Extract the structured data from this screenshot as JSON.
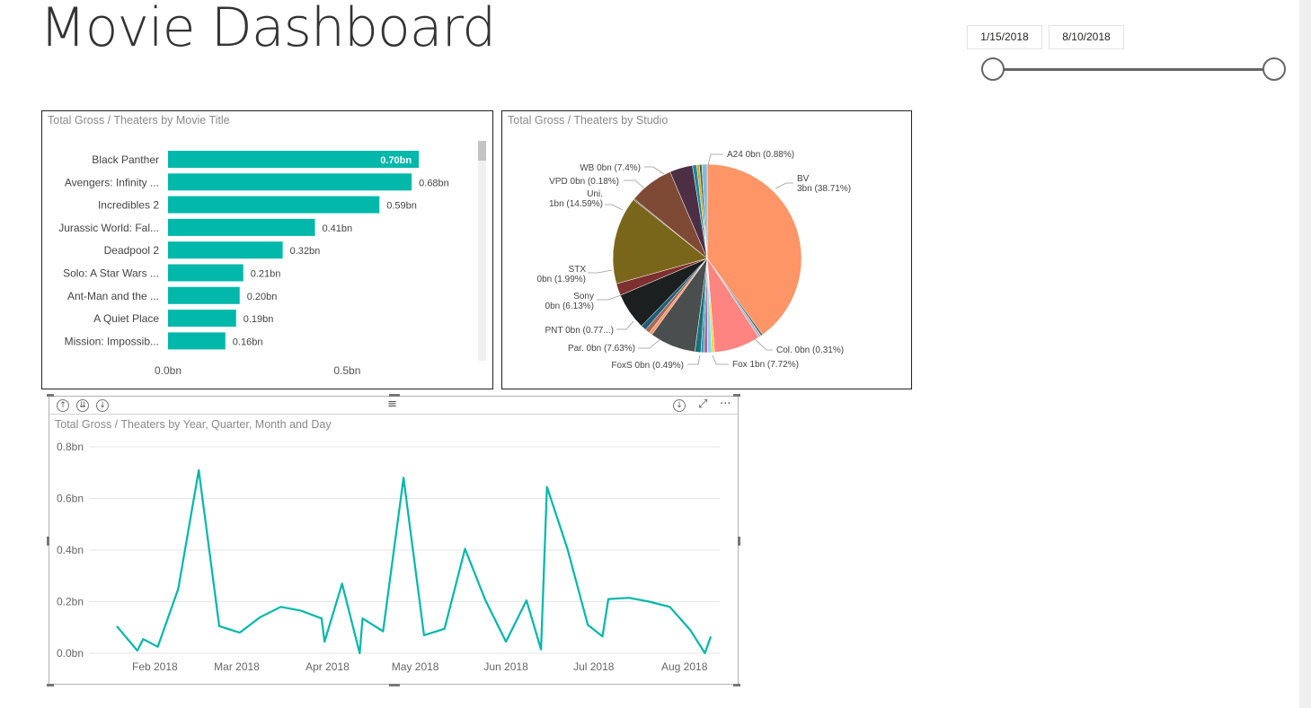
{
  "page": {
    "title": "Movie Dashboard"
  },
  "date_filter": {
    "start_label": "1/15/2018",
    "end_label": "8/10/2018",
    "range_fraction": [
      0.0,
      1.0
    ]
  },
  "bar_panel": {
    "title": "Total Gross / Theaters by Movie Title"
  },
  "pie_panel": {
    "title": "Total Gross / Theaters by Studio"
  },
  "line_panel": {
    "title": "Total Gross / Theaters by Year, Quarter, Month and Day",
    "header_icons": [
      "drill-up-icon",
      "expand-level-icon",
      "drill-down-mode-icon",
      "drag-handle-icon",
      "download-icon",
      "focus-mode-icon",
      "more-options-icon"
    ]
  },
  "colors": {
    "teal": "#01b8aa",
    "border": "#222222"
  },
  "chart_data": [
    {
      "type": "bar",
      "orientation": "horizontal",
      "title": "Total Gross / Theaters by Movie Title",
      "categories": [
        "Black Panther",
        "Avengers: Infinity ...",
        "Incredibles 2",
        "Jurassic World: Fal...",
        "Deadpool 2",
        "Solo: A Star Wars ...",
        "Ant-Man and the ...",
        "A Quiet Place",
        "Mission: Impossib..."
      ],
      "values": [
        0.7,
        0.68,
        0.59,
        0.41,
        0.32,
        0.21,
        0.2,
        0.19,
        0.16
      ],
      "value_labels": [
        "0.70bn",
        "0.68bn",
        "0.59bn",
        "0.41bn",
        "0.32bn",
        "0.21bn",
        "0.20bn",
        "0.19bn",
        "0.16bn"
      ],
      "xlim": [
        0,
        0.8
      ],
      "x_ticks": [
        0,
        0.5
      ],
      "x_tick_labels": [
        "0.0bn",
        "0.5bn"
      ],
      "color": "#01b8aa"
    },
    {
      "type": "pie",
      "title": "Total Gross / Theaters by Studio",
      "slices": [
        {
          "label": "BV 3bn (38.71%)",
          "name": "BV",
          "value_text": "3bn (38.71%)",
          "percent": 38.71,
          "color": "#fd9566"
        },
        {
          "label": "Col. 0bn (0.31%)",
          "name": "Col.",
          "percent": 0.31,
          "color": "#4e5868"
        },
        {
          "label": "unlabeled",
          "name": "",
          "percent": 0.45,
          "color": "#a8b9c9"
        },
        {
          "label": "Fox 1bn (7.72%)",
          "name": "Fox",
          "percent": 7.72,
          "color": "#fd8480"
        },
        {
          "label": "unlabeled",
          "name": "",
          "percent": 0.45,
          "color": "#f5d33f"
        },
        {
          "label": "unlabeled",
          "name": "",
          "percent": 0.7,
          "color": "#8ad4eb"
        },
        {
          "label": "unlabeled",
          "name": "",
          "percent": 0.6,
          "color": "#a66999"
        },
        {
          "label": "FoxS 0bn (0.49%)",
          "name": "FoxS",
          "percent": 0.49,
          "color": "#3599b8"
        },
        {
          "label": "unlabeled",
          "name": "",
          "percent": 1.0,
          "color": "#197278"
        },
        {
          "label": "Par. 0bn (7.63%)",
          "name": "Par.",
          "percent": 7.63,
          "color": "#4a4e4e"
        },
        {
          "label": "unlabeled",
          "name": "",
          "percent": 0.55,
          "color": "#fe9666"
        },
        {
          "label": "PNT 0bn (0.77...)",
          "name": "PNT",
          "percent": 0.77,
          "color": "#a66a59"
        },
        {
          "label": "unlabeled",
          "name": "",
          "percent": 0.9,
          "color": "#1f5d78"
        },
        {
          "label": "Sony 0bn (6.13%)",
          "name": "Sony",
          "value_text": "0bn (6.13%)",
          "percent": 6.13,
          "color": "#1b1f1f"
        },
        {
          "label": "STX 0bn (1.99%)",
          "name": "STX",
          "value_text": "0bn (1.99%)",
          "percent": 1.99,
          "color": "#7e2f2f"
        },
        {
          "label": "Uni. 1bn (14.59%)",
          "name": "Uni.",
          "value_text": "1bn (14.59%)",
          "percent": 14.59,
          "color": "#7a661a"
        },
        {
          "label": "VPD 0bn (0.18%)",
          "name": "VPD",
          "percent": 0.18,
          "color": "#5f6b6d"
        },
        {
          "label": "WB 0bn (7.4%)",
          "name": "WB",
          "percent": 7.4,
          "color": "#7f4a35"
        },
        {
          "label": "unlabeled",
          "name": "",
          "percent": 3.8,
          "color": "#4c2e45"
        },
        {
          "label": "unlabeled",
          "name": "",
          "percent": 0.7,
          "color": "#1b8a9c"
        },
        {
          "label": "unlabeled",
          "name": "",
          "percent": 0.45,
          "color": "#d9a41a"
        },
        {
          "label": "unlabeled",
          "name": "",
          "percent": 0.4,
          "color": "#2a6a55"
        },
        {
          "label": "A24 0bn (0.88%)",
          "name": "A24",
          "percent": 0.88,
          "color": "#8ab8d8"
        }
      ]
    },
    {
      "type": "line",
      "title": "Total Gross / Theaters by Year, Quarter, Month and Day",
      "ylim": [
        0,
        0.8
      ],
      "y_ticks": [
        0,
        0.2,
        0.4,
        0.6,
        0.8
      ],
      "y_tick_labels": [
        "0.0bn",
        "0.2bn",
        "0.4bn",
        "0.6bn",
        "0.8bn"
      ],
      "x_tick_labels": [
        "Feb 2018",
        "Mar 2018",
        "Apr 2018",
        "May 2018",
        "Jun 2018",
        "Jul 2018",
        "Aug 2018"
      ],
      "x_ticks": [
        "2018-02-01",
        "2018-03-01",
        "2018-04-01",
        "2018-05-01",
        "2018-06-01",
        "2018-07-01",
        "2018-08-01"
      ],
      "xlim": [
        "2018-01-15",
        "2018-08-10"
      ],
      "grid": true,
      "color": "#01b8aa",
      "points": [
        [
          "2018-01-19",
          0.105
        ],
        [
          "2018-01-26",
          0.01
        ],
        [
          "2018-01-28",
          0.055
        ],
        [
          "2018-02-02",
          0.025
        ],
        [
          "2018-02-09",
          0.25
        ],
        [
          "2018-02-16",
          0.71
        ],
        [
          "2018-02-23",
          0.105
        ],
        [
          "2018-03-02",
          0.08
        ],
        [
          "2018-03-09",
          0.14
        ],
        [
          "2018-03-16",
          0.18
        ],
        [
          "2018-03-23",
          0.165
        ],
        [
          "2018-03-30",
          0.135
        ],
        [
          "2018-03-31",
          0.045
        ],
        [
          "2018-04-06",
          0.27
        ],
        [
          "2018-04-12",
          0.0
        ],
        [
          "2018-04-13",
          0.135
        ],
        [
          "2018-04-20",
          0.085
        ],
        [
          "2018-04-27",
          0.68
        ],
        [
          "2018-05-04",
          0.07
        ],
        [
          "2018-05-11",
          0.095
        ],
        [
          "2018-05-18",
          0.405
        ],
        [
          "2018-05-25",
          0.205
        ],
        [
          "2018-06-01",
          0.045
        ],
        [
          "2018-06-08",
          0.205
        ],
        [
          "2018-06-13",
          0.015
        ],
        [
          "2018-06-15",
          0.645
        ],
        [
          "2018-06-22",
          0.405
        ],
        [
          "2018-06-29",
          0.11
        ],
        [
          "2018-07-04",
          0.065
        ],
        [
          "2018-07-06",
          0.21
        ],
        [
          "2018-07-13",
          0.215
        ],
        [
          "2018-07-20",
          0.2
        ],
        [
          "2018-07-27",
          0.18
        ],
        [
          "2018-08-03",
          0.09
        ],
        [
          "2018-08-08",
          0.0
        ],
        [
          "2018-08-10",
          0.065
        ]
      ]
    }
  ]
}
